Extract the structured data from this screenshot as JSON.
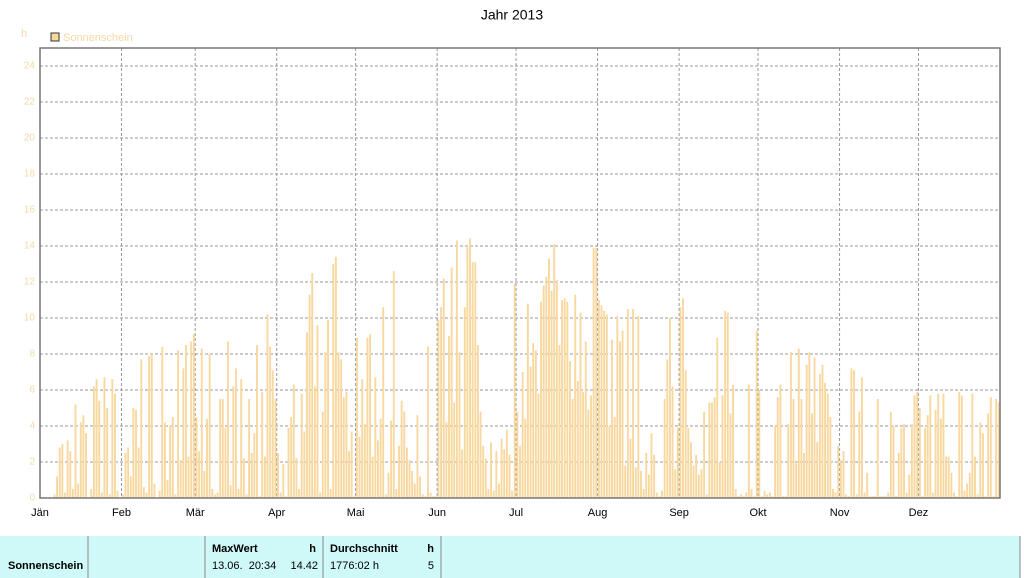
{
  "chart_data": {
    "type": "bar",
    "title": "Jahr 2013",
    "y_label": "h",
    "series": [
      {
        "name": "Sonnenschein",
        "color": "#f8d89f",
        "values": [
          0,
          0,
          0,
          0,
          0,
          0.2,
          1.2,
          2.8,
          3,
          0.3,
          3.2,
          2.6,
          0.5,
          5.2,
          0.8,
          4.2,
          4.6,
          3.6,
          0,
          0.5,
          6.2,
          6.6,
          5.4,
          0.3,
          6.7,
          5,
          0.2,
          6.6,
          5.8,
          0.4,
          0,
          0.2,
          2.5,
          2.8,
          1.2,
          5,
          4.9,
          2.8,
          7.7,
          0.6,
          0.3,
          7.9,
          8,
          0.8,
          0,
          0.4,
          8.4,
          4.2,
          1,
          4,
          4.5,
          0.2,
          8.2,
          2.1,
          7.2,
          8.5,
          2.3,
          8.7,
          9.1,
          4.5,
          2.6,
          8.3,
          1.5,
          4.4,
          8,
          0.5,
          0.2,
          0.3,
          5.5,
          5.5,
          3.9,
          8.7,
          0.7,
          6.2,
          7.2,
          0.5,
          6.6,
          2.2,
          0.2,
          5.5,
          2.5,
          3.6,
          8.5,
          0.1,
          5.9,
          2.3,
          10.2,
          8.4,
          7.1,
          5.5,
          2.5,
          0.3,
          1.9,
          0.1,
          3.9,
          4.5,
          6.3,
          2.2,
          0.5,
          5.8,
          3.7,
          9.2,
          11.3,
          12.5,
          6.2,
          9.6,
          0.3,
          4.8,
          8.1,
          9.9,
          0.5,
          13,
          13.4,
          8.1,
          7.7,
          5.6,
          5.9,
          2.6,
          3.7,
          0.1,
          8.9,
          3.4,
          6.6,
          4.1,
          8.9,
          9.1,
          2.3,
          6.7,
          3.2,
          4.4,
          10.6,
          0.2,
          1.4,
          4.3,
          12.6,
          0.5,
          2.9,
          5.4,
          4.8,
          2.8,
          2.1,
          1.5,
          0.8,
          4.6,
          1.2,
          0.2,
          0.1,
          8.4,
          0.3,
          0.1,
          0.1,
          9.9,
          10.6,
          12.2,
          4.2,
          9,
          12.8,
          5.3,
          14.3,
          8.1,
          2.7,
          10.6,
          14,
          14.42,
          13.1,
          13.1,
          8.5,
          4.8,
          2.9,
          2.2,
          0.5,
          3.1,
          0.4,
          2.6,
          0.8,
          3.3,
          2.7,
          3.8,
          2.4,
          0.4,
          11.9,
          4.8,
          2.9,
          7,
          4.4,
          10.8,
          7.3,
          8.6,
          8.2,
          5.8,
          10.9,
          11.8,
          12.3,
          13.3,
          11.5,
          14.1,
          12.1,
          8.5,
          11,
          11.1,
          10.9,
          7.6,
          5.5,
          11.3,
          6.5,
          10.3,
          5.9,
          8.7,
          4.9,
          5.7,
          13.9,
          13.9,
          11,
          10.7,
          10.4,
          10.2,
          4,
          8.8,
          4.5,
          10.1,
          8.7,
          9.3,
          1.8,
          10.5,
          3.3,
          10.5,
          1.7,
          10.1,
          1.5,
          0.5,
          2.5,
          1.3,
          3.6,
          2.4,
          0.3,
          0.1,
          0.4,
          5.5,
          7.7,
          10,
          6.2,
          1.6,
          3.9,
          10.6,
          11.1,
          7.1,
          3.9,
          3.1,
          1.8,
          2.4,
          1.3,
          1.6,
          4.8,
          0.2,
          5.3,
          5.3,
          5.6,
          8.9,
          2,
          5.7,
          10.4,
          10.3,
          4.7,
          6.3,
          0.5,
          0.1,
          0.2,
          0.1,
          0.3,
          6.3,
          0.5,
          0.1,
          9.3,
          6,
          0.1,
          0.4,
          0.2,
          0.3,
          0.1,
          4,
          5.6,
          6.3,
          0.1,
          0.1,
          4.1,
          8.1,
          5.5,
          2,
          8.3,
          5.5,
          2.5,
          7.4,
          8.1,
          4.7,
          7.8,
          3.1,
          6.9,
          7.4,
          6.4,
          5.8,
          4.5,
          0.5,
          0.3,
          2.9,
          2.1,
          2.6,
          0.2,
          0.1,
          7.2,
          7.1,
          0.2,
          4.8,
          6.7,
          0.3,
          1.4,
          0.1,
          0.1,
          0.1,
          5.5,
          0.1,
          0.1,
          0.1,
          0.3,
          4.8,
          4,
          0.1,
          2.5,
          3.9,
          4.1,
          0.3,
          1.3,
          4.1,
          5.7,
          5.9,
          5,
          0.1,
          3.9,
          4.6,
          5.7,
          0.3,
          4.9,
          5.8,
          4.4,
          5.8,
          2.3,
          2.3,
          1.4,
          0.3,
          0.1,
          5.9,
          5.7,
          0.4,
          0.8,
          1.4,
          5.8,
          2.3,
          0.2,
          4.2,
          3.6,
          0.1,
          4.7,
          5.6,
          0.1,
          5.5,
          5.3
        ]
      }
    ],
    "categories": [
      "Jän",
      null,
      null,
      null,
      null,
      null,
      null,
      null,
      null,
      null,
      null,
      null,
      null,
      null,
      null,
      null,
      null,
      null,
      null,
      null,
      null,
      null,
      null,
      null,
      null,
      null,
      null,
      null,
      null,
      null,
      null,
      "Feb",
      null,
      null,
      null,
      null,
      null,
      null,
      null,
      null,
      null,
      null,
      null,
      null,
      null,
      null,
      null,
      null,
      null,
      null,
      null,
      null,
      null,
      null,
      null,
      null,
      null,
      null,
      null,
      "Mär",
      null,
      null,
      null,
      null,
      null,
      null,
      null,
      null,
      null,
      null,
      null,
      null,
      null,
      null,
      null,
      null,
      null,
      null,
      null,
      null,
      null,
      null,
      null,
      null,
      null,
      null,
      null,
      null,
      null,
      null,
      "Apr",
      null,
      null,
      null,
      null,
      null,
      null,
      null,
      null,
      null,
      null,
      null,
      null,
      null,
      null,
      null,
      null,
      null,
      null,
      null,
      null,
      null,
      null,
      null,
      null,
      null,
      null,
      null,
      null,
      null,
      "Mai",
      null,
      null,
      null,
      null,
      null,
      null,
      null,
      null,
      null,
      null,
      null,
      null,
      null,
      null,
      null,
      null,
      null,
      null,
      null,
      null,
      null,
      null,
      null,
      null,
      null,
      null,
      null,
      null,
      null,
      null,
      "Jun",
      null,
      null,
      null,
      null,
      null,
      null,
      null,
      null,
      null,
      null,
      null,
      null,
      null,
      null,
      null,
      null,
      null,
      null,
      null,
      null,
      null,
      null,
      null,
      null,
      null,
      null,
      null,
      null,
      null,
      "Jul",
      null,
      null,
      null,
      null,
      null,
      null,
      null,
      null,
      null,
      null,
      null,
      null,
      null,
      null,
      null,
      null,
      null,
      null,
      null,
      null,
      null,
      null,
      null,
      null,
      null,
      null,
      null,
      null,
      null,
      null,
      "Aug",
      null,
      null,
      null,
      null,
      null,
      null,
      null,
      null,
      null,
      null,
      null,
      null,
      null,
      null,
      null,
      null,
      null,
      null,
      null,
      null,
      null,
      null,
      null,
      null,
      null,
      null,
      null,
      null,
      null,
      null,
      "Sep",
      null,
      null,
      null,
      null,
      null,
      null,
      null,
      null,
      null,
      null,
      null,
      null,
      null,
      null,
      null,
      null,
      null,
      null,
      null,
      null,
      null,
      null,
      null,
      null,
      null,
      null,
      null,
      null,
      null,
      "Okt",
      null,
      null,
      null,
      null,
      null,
      null,
      null,
      null,
      null,
      null,
      null,
      null,
      null,
      null,
      null,
      null,
      null,
      null,
      null,
      null,
      null,
      null,
      null,
      null,
      null,
      null,
      null,
      null,
      null,
      null,
      "Nov",
      null,
      null,
      null,
      null,
      null,
      null,
      null,
      null,
      null,
      null,
      null,
      null,
      null,
      null,
      null,
      null,
      null,
      null,
      null,
      null,
      null,
      null,
      null,
      null,
      null,
      null,
      null,
      null,
      null,
      "Dez",
      null,
      null,
      null,
      null,
      null,
      null,
      null,
      null,
      null,
      null,
      null,
      null,
      null,
      null,
      null,
      null,
      null,
      null,
      null,
      null,
      null,
      null,
      null,
      null,
      null,
      null,
      null,
      null,
      null,
      null
    ],
    "ylim": [
      0,
      25
    ],
    "yticks": [
      0,
      2,
      4,
      6,
      8,
      10,
      12,
      14,
      16,
      18,
      20,
      22,
      24
    ],
    "grid": true,
    "legend": "top-left"
  },
  "table": {
    "row_label": "Sonnenschein",
    "max_header": "MaxWert",
    "max_unit": "h",
    "max_time": "13.06.  20:34",
    "max_value": "14.42",
    "avg_header": "Durchschnitt",
    "avg_unit": "h",
    "avg_total": "1776:02 h",
    "avg_value": "5"
  }
}
